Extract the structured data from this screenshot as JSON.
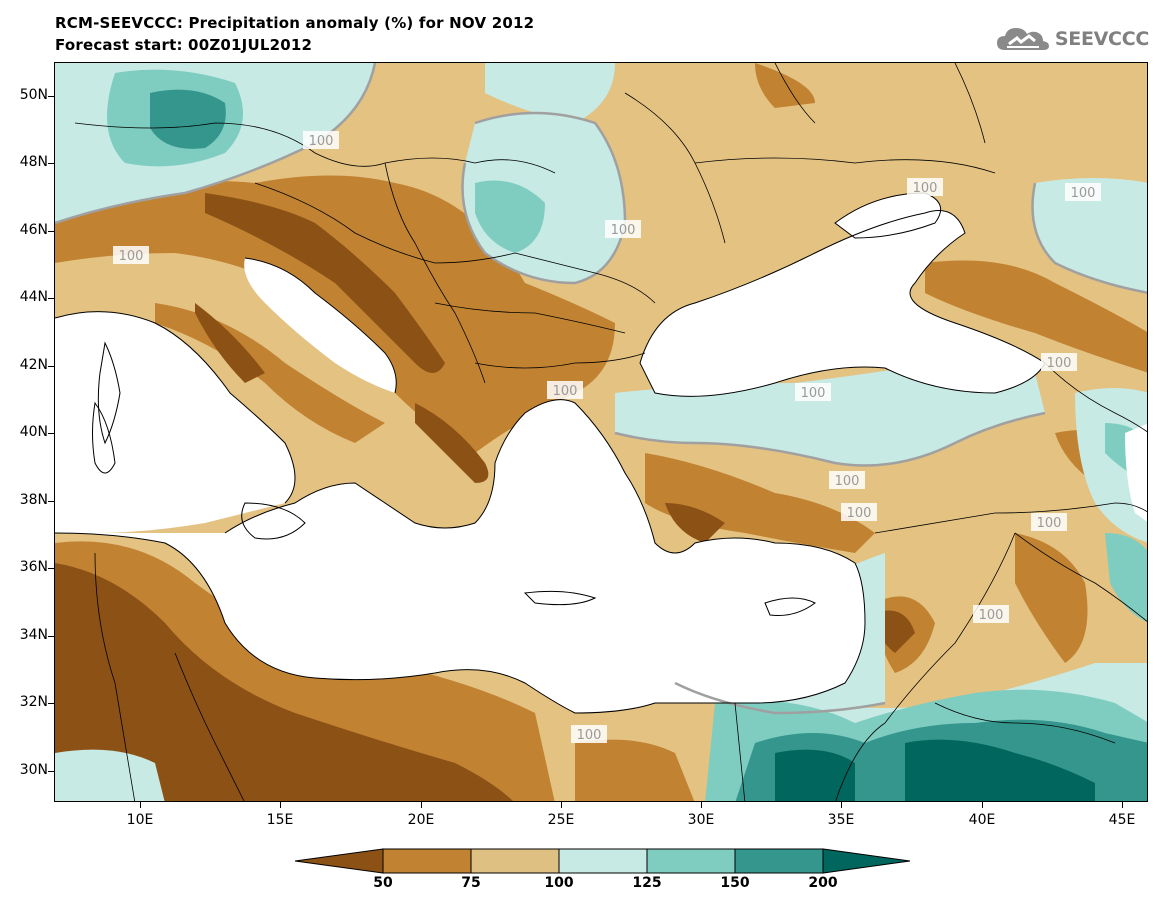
{
  "title": {
    "line1": "RCM-SEEVCCC: Precipitation anomaly (%) for NOV 2012",
    "line2": "Forecast start: 00Z01JUL2012"
  },
  "logo": {
    "text": "SEEVCCC",
    "icon": "cloud-icon"
  },
  "axes": {
    "lat_labels": [
      "50N",
      "48N",
      "46N",
      "44N",
      "42N",
      "40N",
      "38N",
      "36N",
      "34N",
      "32N",
      "30N"
    ],
    "lon_labels": [
      "10E",
      "15E",
      "20E",
      "25E",
      "30E",
      "35E",
      "40E",
      "45E"
    ]
  },
  "contour_label": "100",
  "colorbar": {
    "labels": [
      "50",
      "75",
      "100",
      "125",
      "150",
      "200"
    ],
    "colors": [
      "#8c5114",
      "#c18232",
      "#dfc083",
      "#c7eae4",
      "#7fcdc1",
      "#35968d",
      "#01665e"
    ]
  },
  "colors": {
    "land_default": "#e3c282",
    "sea": "#ffffff",
    "contour": "#a0a0a0"
  }
}
